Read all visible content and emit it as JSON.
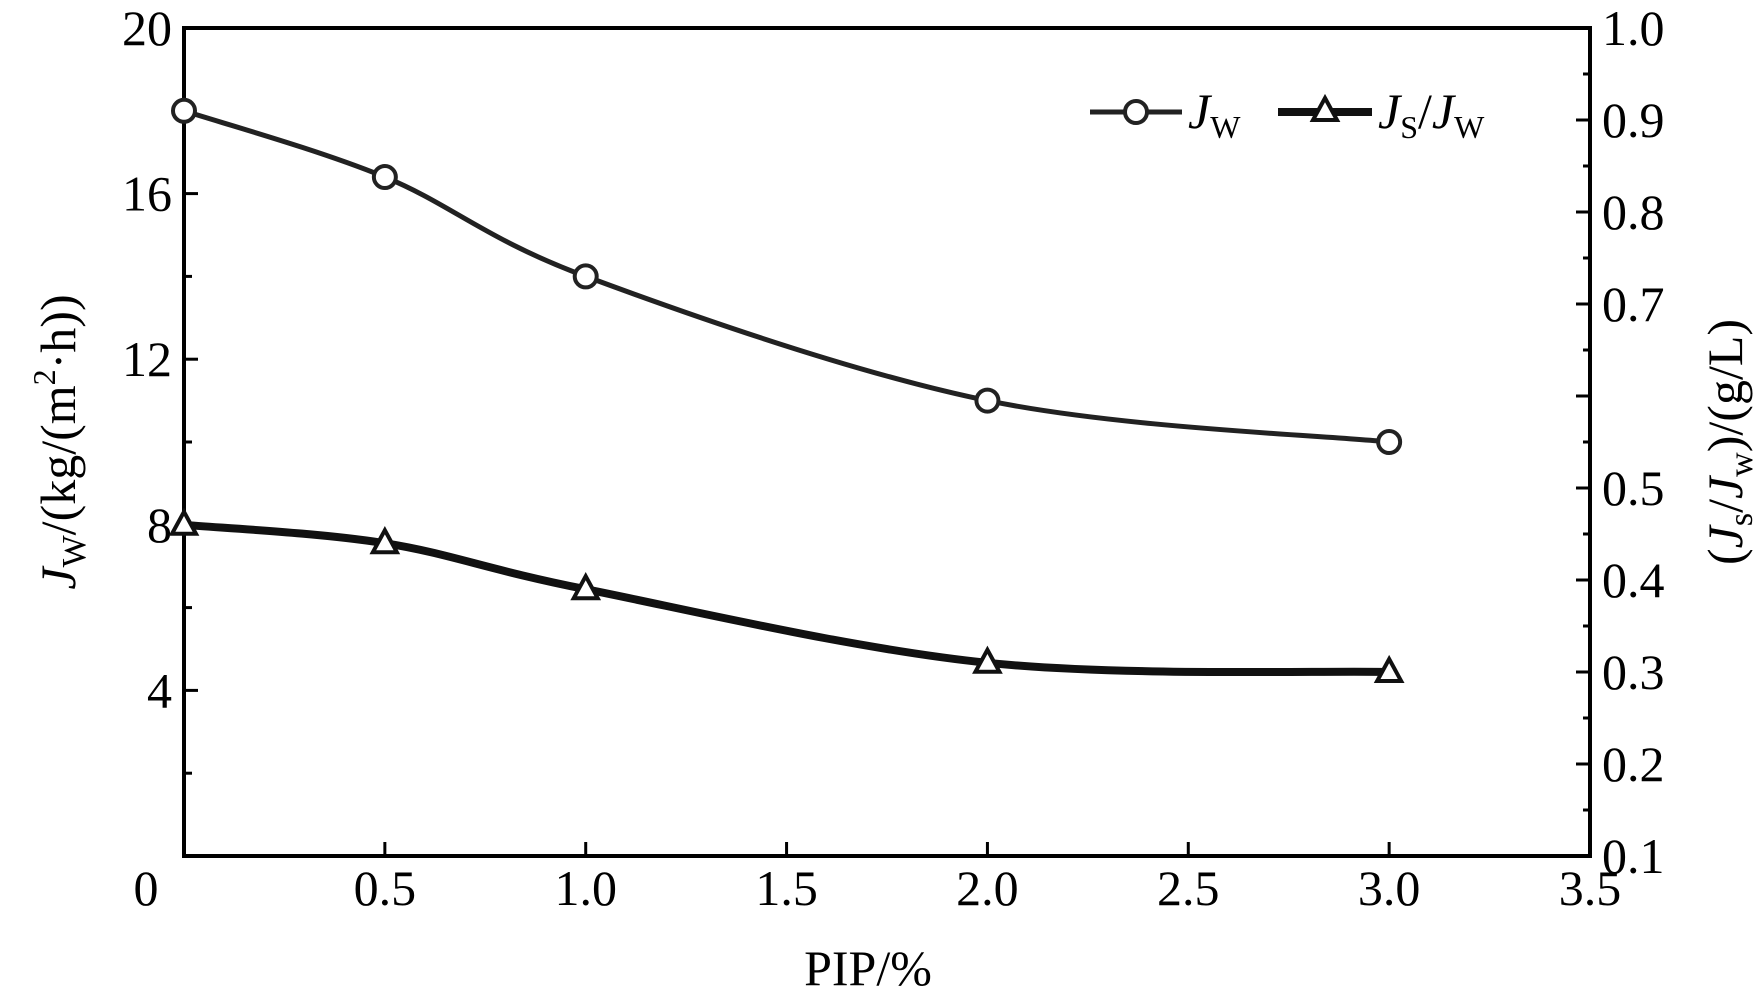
{
  "chart_data": {
    "type": "line",
    "x": [
      0,
      0.5,
      1.0,
      2.0,
      3.0
    ],
    "xlim": [
      0,
      3.5
    ],
    "x_ticks": [
      {
        "value": 0,
        "label": "0"
      },
      {
        "value": 0.5,
        "label": "0.5"
      },
      {
        "value": 1.0,
        "label": "1.0"
      },
      {
        "value": 1.5,
        "label": "1.5"
      },
      {
        "value": 2.0,
        "label": "2.0"
      },
      {
        "value": 2.5,
        "label": "2.5"
      },
      {
        "value": 3.0,
        "label": "3.0"
      },
      {
        "value": 3.5,
        "label": "3.5"
      }
    ],
    "xlabel": "PIP/%",
    "y_left": {
      "lim": [
        0,
        20
      ],
      "ticks": [
        {
          "value": 4,
          "label": "4"
        },
        {
          "value": 8,
          "label": "8"
        },
        {
          "value": 12,
          "label": "12"
        },
        {
          "value": 16,
          "label": "16"
        },
        {
          "value": 20,
          "label": "20"
        }
      ],
      "minor_ticks": [
        2,
        6,
        10,
        14,
        18
      ],
      "label": {
        "main": "J",
        "sub": "W",
        "rest": "/(kg/(m",
        "sup": "2",
        "tail": "·h))"
      }
    },
    "y_right": {
      "lim": [
        0.1,
        1.0
      ],
      "ticks": [
        {
          "value": 0.1,
          "label": "0.1"
        },
        {
          "value": 0.2,
          "label": "0.2"
        },
        {
          "value": 0.3,
          "label": "0.3"
        },
        {
          "value": 0.4,
          "label": "0.4"
        },
        {
          "value": 0.5,
          "label": "0.5"
        },
        {
          "value": 0.7,
          "label": "0.7"
        },
        {
          "value": 0.8,
          "label": "0.8"
        },
        {
          "value": 0.9,
          "label": "0.9"
        },
        {
          "value": 1.0,
          "label": "1.0"
        }
      ],
      "minor_ticks": [
        0.6
      ],
      "label": {
        "open": "(",
        "j1": "J",
        "s1": "s",
        "slash": "/",
        "j2": "J",
        "s2": "w",
        "tail": ")/(g/L)"
      }
    },
    "series": [
      {
        "name": {
          "main": "J",
          "sub": "W"
        },
        "axis": "left",
        "marker": "circle",
        "values": [
          18.0,
          16.4,
          14.0,
          11.0,
          10.0
        ]
      },
      {
        "name": {
          "main1": "J",
          "sub1": "S",
          "slash": "/",
          "main2": "J",
          "sub2": "W"
        },
        "axis": "right",
        "marker": "triangle",
        "values": [
          0.46,
          0.44,
          0.39,
          0.31,
          0.3
        ]
      }
    ],
    "legend": {
      "position": "top-right"
    },
    "grid": false,
    "zero_label": "0"
  }
}
